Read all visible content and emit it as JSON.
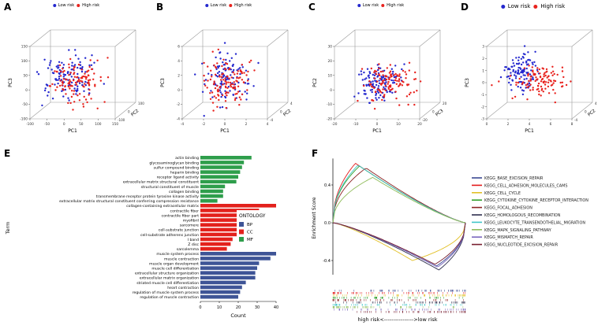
{
  "risk_legend": {
    "low": "Low risk",
    "high": "High risk",
    "low_color": "#2428CE",
    "high_color": "#E8231E"
  },
  "chart_data": [
    {
      "panel": "A",
      "type": "scatter3d",
      "xlabel": "PC1",
      "ylabel": "PC3",
      "zlabel": "PC2",
      "xticks": [
        "-100",
        "-50",
        "0",
        "50",
        "100",
        "150"
      ],
      "yticks": [
        "150",
        "100",
        "50",
        "0",
        "-50",
        "-100"
      ],
      "zticks": [
        "-100",
        "0",
        "100"
      ],
      "seed": 101,
      "points": {
        "low": {
          "n": 120,
          "cu": 0.4,
          "cv": 0.52,
          "su": 0.14,
          "sv": 0.15
        },
        "high": {
          "n": 120,
          "cu": 0.5,
          "cv": 0.45,
          "su": 0.16,
          "sv": 0.15
        }
      }
    },
    {
      "panel": "B",
      "type": "scatter3d",
      "xlabel": "PC1",
      "ylabel": "PC3",
      "zlabel": "PC2",
      "xticks": [
        "-4",
        "-2",
        "0",
        "2",
        "4"
      ],
      "yticks": [
        "6",
        "4",
        "2",
        "0",
        "-2",
        "-4"
      ],
      "zticks": [
        "-4",
        "0",
        "4"
      ],
      "seed": 202,
      "points": {
        "low": {
          "n": 120,
          "cu": 0.45,
          "cv": 0.5,
          "su": 0.13,
          "sv": 0.16
        },
        "high": {
          "n": 120,
          "cu": 0.5,
          "cv": 0.42,
          "su": 0.15,
          "sv": 0.15
        }
      }
    },
    {
      "panel": "C",
      "type": "scatter3d",
      "xlabel": "PC1",
      "ylabel": "PC2",
      "zlabel": "PC3",
      "xticks": [
        "-20",
        "-10",
        "0",
        "10",
        "20"
      ],
      "yticks": [
        "30",
        "20",
        "10",
        "0",
        "-10",
        "-20"
      ],
      "zticks": [
        "-20",
        "0",
        "20"
      ],
      "seed": 303,
      "points": {
        "low": {
          "n": 120,
          "cu": 0.46,
          "cv": 0.42,
          "su": 0.12,
          "sv": 0.12
        },
        "high": {
          "n": 120,
          "cu": 0.56,
          "cv": 0.44,
          "su": 0.15,
          "sv": 0.13
        }
      }
    },
    {
      "panel": "D",
      "type": "scatter3d",
      "xlabel": "PC1",
      "ylabel": "PC3",
      "zlabel": "PC2",
      "xticks": [
        "0",
        "2",
        "4",
        "6",
        "8"
      ],
      "yticks": [
        "3",
        "2",
        "1",
        "0",
        "-1",
        "-2",
        "-3"
      ],
      "zticks": [
        "-4",
        "0",
        "4"
      ],
      "seed": 404,
      "points": {
        "low": {
          "n": 110,
          "cu": 0.34,
          "cv": 0.6,
          "su": 0.09,
          "sv": 0.13
        },
        "high": {
          "n": 110,
          "cu": 0.56,
          "cv": 0.46,
          "su": 0.15,
          "sv": 0.11
        }
      }
    },
    {
      "panel": "E",
      "type": "bar",
      "orientation": "horizontal",
      "xlabel": "Count",
      "ylabel": "Term",
      "xlim": [
        0,
        40
      ],
      "xticks": [
        0,
        10,
        20,
        30,
        40
      ],
      "legend_title": "ONTOLOGY",
      "groups": [
        {
          "key": "BP",
          "color": "#3E5496"
        },
        {
          "key": "CC",
          "color": "#E3211C"
        },
        {
          "key": "MF",
          "color": "#2E9E4B"
        }
      ],
      "bars": [
        {
          "term": "actin binding",
          "group": "MF",
          "value": 27
        },
        {
          "term": "glycosaminoglycan binding",
          "group": "MF",
          "value": 23
        },
        {
          "term": "sulfur compound binding",
          "group": "MF",
          "value": 22
        },
        {
          "term": "heparin binding",
          "group": "MF",
          "value": 21
        },
        {
          "term": "receptor ligand activity",
          "group": "MF",
          "value": 20
        },
        {
          "term": "extracellular matrix structural constituent",
          "group": "MF",
          "value": 19
        },
        {
          "term": "structural constituent of muscle",
          "group": "MF",
          "value": 13
        },
        {
          "term": "collagen binding",
          "group": "MF",
          "value": 12
        },
        {
          "term": "transmembrane receptor protein tyrosine kinase activity",
          "group": "MF",
          "value": 12
        },
        {
          "term": "extracellular matrix structural constituent conferring compression resistance",
          "group": "MF",
          "value": 9
        },
        {
          "term": "collagen-containing extracellular matrix",
          "group": "CC",
          "value": 40
        },
        {
          "term": "contractile fiber",
          "group": "CC",
          "value": 31
        },
        {
          "term": "contractile fiber part",
          "group": "CC",
          "value": 30
        },
        {
          "term": "myofibril",
          "group": "CC",
          "value": 29
        },
        {
          "term": "sarcomere",
          "group": "CC",
          "value": 28
        },
        {
          "term": "cell-substrate junction",
          "group": "CC",
          "value": 24
        },
        {
          "term": "cell-substrate adherens junction",
          "group": "CC",
          "value": 23
        },
        {
          "term": "I band",
          "group": "CC",
          "value": 17
        },
        {
          "term": "Z disc",
          "group": "CC",
          "value": 16
        },
        {
          "term": "sarcolemma",
          "group": "CC",
          "value": 14
        },
        {
          "term": "muscle system process",
          "group": "BP",
          "value": 40
        },
        {
          "term": "muscle contraction",
          "group": "BP",
          "value": 37
        },
        {
          "term": "muscle organ development",
          "group": "BP",
          "value": 31
        },
        {
          "term": "muscle cell differentiation",
          "group": "BP",
          "value": 30
        },
        {
          "term": "extracellular structure organization",
          "group": "BP",
          "value": 29
        },
        {
          "term": "extracellular matrix organization",
          "group": "BP",
          "value": 29
        },
        {
          "term": "striated muscle cell differentiation",
          "group": "BP",
          "value": 24
        },
        {
          "term": "heart contraction",
          "group": "BP",
          "value": 22
        },
        {
          "term": "regulation of muscle system process",
          "group": "BP",
          "value": 21
        },
        {
          "term": "regulation of muscle contraction",
          "group": "BP",
          "value": 20
        }
      ]
    },
    {
      "panel": "F",
      "type": "line",
      "ylabel": "Enrichment Score",
      "yticks": [
        0.4,
        0.0,
        -0.4
      ],
      "xlabel": "high risk<---------------->low risk",
      "series": [
        {
          "name": "KEGG_BASE_EXCISION_REPAIR",
          "color": "#3B4992",
          "peak": -0.46,
          "peak_pos": 0.78
        },
        {
          "name": "KEGG_CELL_ADHESION_MOLECULES_CAMS",
          "color": "#E31A1C",
          "peak": 0.63,
          "peak_pos": 0.17
        },
        {
          "name": "KEGG_CELL_CYCLE",
          "color": "#E2C027",
          "peak": -0.4,
          "peak_pos": 0.6
        },
        {
          "name": "KEGG_CYTOKINE_CYTOKINE_RECEPTOR_INTERACTION",
          "color": "#33A02C",
          "peak": 0.6,
          "peak_pos": 0.2
        },
        {
          "name": "KEGG_FOCAL_ADHESION",
          "color": "#8B2323",
          "peak": 0.58,
          "peak_pos": 0.25
        },
        {
          "name": "KEGG_HOMOLOGOUS_RECOMBINATION",
          "color": "#2F2F4F",
          "peak": -0.5,
          "peak_pos": 0.8
        },
        {
          "name": "KEGG_LEUKOCYTE_TRANSENDOTHELIAL_MIGRATION",
          "color": "#41C6C8",
          "peak": 0.61,
          "peak_pos": 0.19
        },
        {
          "name": "KEGG_MAPK_SIGNALING_PATHWAY",
          "color": "#8FBC5A",
          "peak": 0.48,
          "peak_pos": 0.3
        },
        {
          "name": "KEGG_MISMATCH_REPAIR",
          "color": "#7B68BE",
          "peak": -0.47,
          "peak_pos": 0.79
        },
        {
          "name": "KEGG_NUCLEOTIDE_EXCISION_REPAIR",
          "color": "#781F30",
          "peak": -0.44,
          "peak_pos": 0.77
        }
      ]
    }
  ]
}
